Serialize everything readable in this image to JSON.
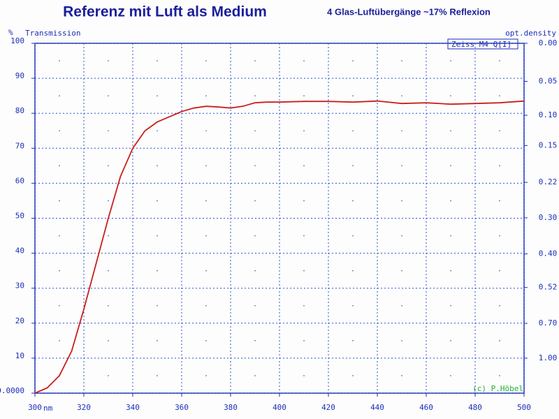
{
  "chart_data": {
    "type": "line",
    "title": "Referenz mit Luft als Medium",
    "subtitle": "4 Glas-Luftübergänge  ~17% Reflexion",
    "y_unit": "%",
    "ylabel": "Transmission",
    "y2label": "opt.density",
    "xlabel": "nm",
    "annotations": [
      "Zeiss M4 Q[I]",
      "(c) P.Höbel"
    ],
    "x": [
      300,
      305,
      310,
      315,
      320,
      325,
      330,
      335,
      340,
      345,
      350,
      355,
      360,
      365,
      370,
      375,
      380,
      385,
      390,
      395,
      400,
      410,
      420,
      430,
      440,
      450,
      460,
      470,
      480,
      490,
      500
    ],
    "series": [
      {
        "name": "Transmission",
        "color": "#c8201c",
        "values": [
          0,
          1.5,
          5,
          12,
          24,
          37,
          50,
          62,
          70,
          75,
          77.5,
          79,
          80.5,
          81.5,
          82,
          81.8,
          81.5,
          82,
          83,
          83.2,
          83.2,
          83.4,
          83.4,
          83.2,
          83.5,
          82.8,
          83,
          82.6,
          82.8,
          83,
          83.5
        ]
      }
    ],
    "xlim": [
      300,
      500
    ],
    "xticks": [
      300,
      320,
      340,
      360,
      380,
      400,
      420,
      440,
      460,
      480,
      500
    ],
    "ylim": [
      0,
      100
    ],
    "yticks": [
      {
        "value": 0,
        "label": "0.0000"
      },
      10,
      20,
      30,
      40,
      50,
      60,
      70,
      80,
      90,
      100
    ],
    "y2_scale": "optical-density",
    "y2ticks": [
      {
        "value": 0,
        "label": "0.00"
      },
      0.05,
      {
        "value": 0.1,
        "label": "0.10"
      },
      0.15,
      0.22,
      {
        "value": 0.3,
        "label": "0.30"
      },
      {
        "value": 0.4,
        "label": "0.40"
      },
      0.52,
      {
        "value": 0.7,
        "label": "0.70"
      },
      {
        "value": 1,
        "label": "1.00"
      }
    ],
    "grid": true
  }
}
